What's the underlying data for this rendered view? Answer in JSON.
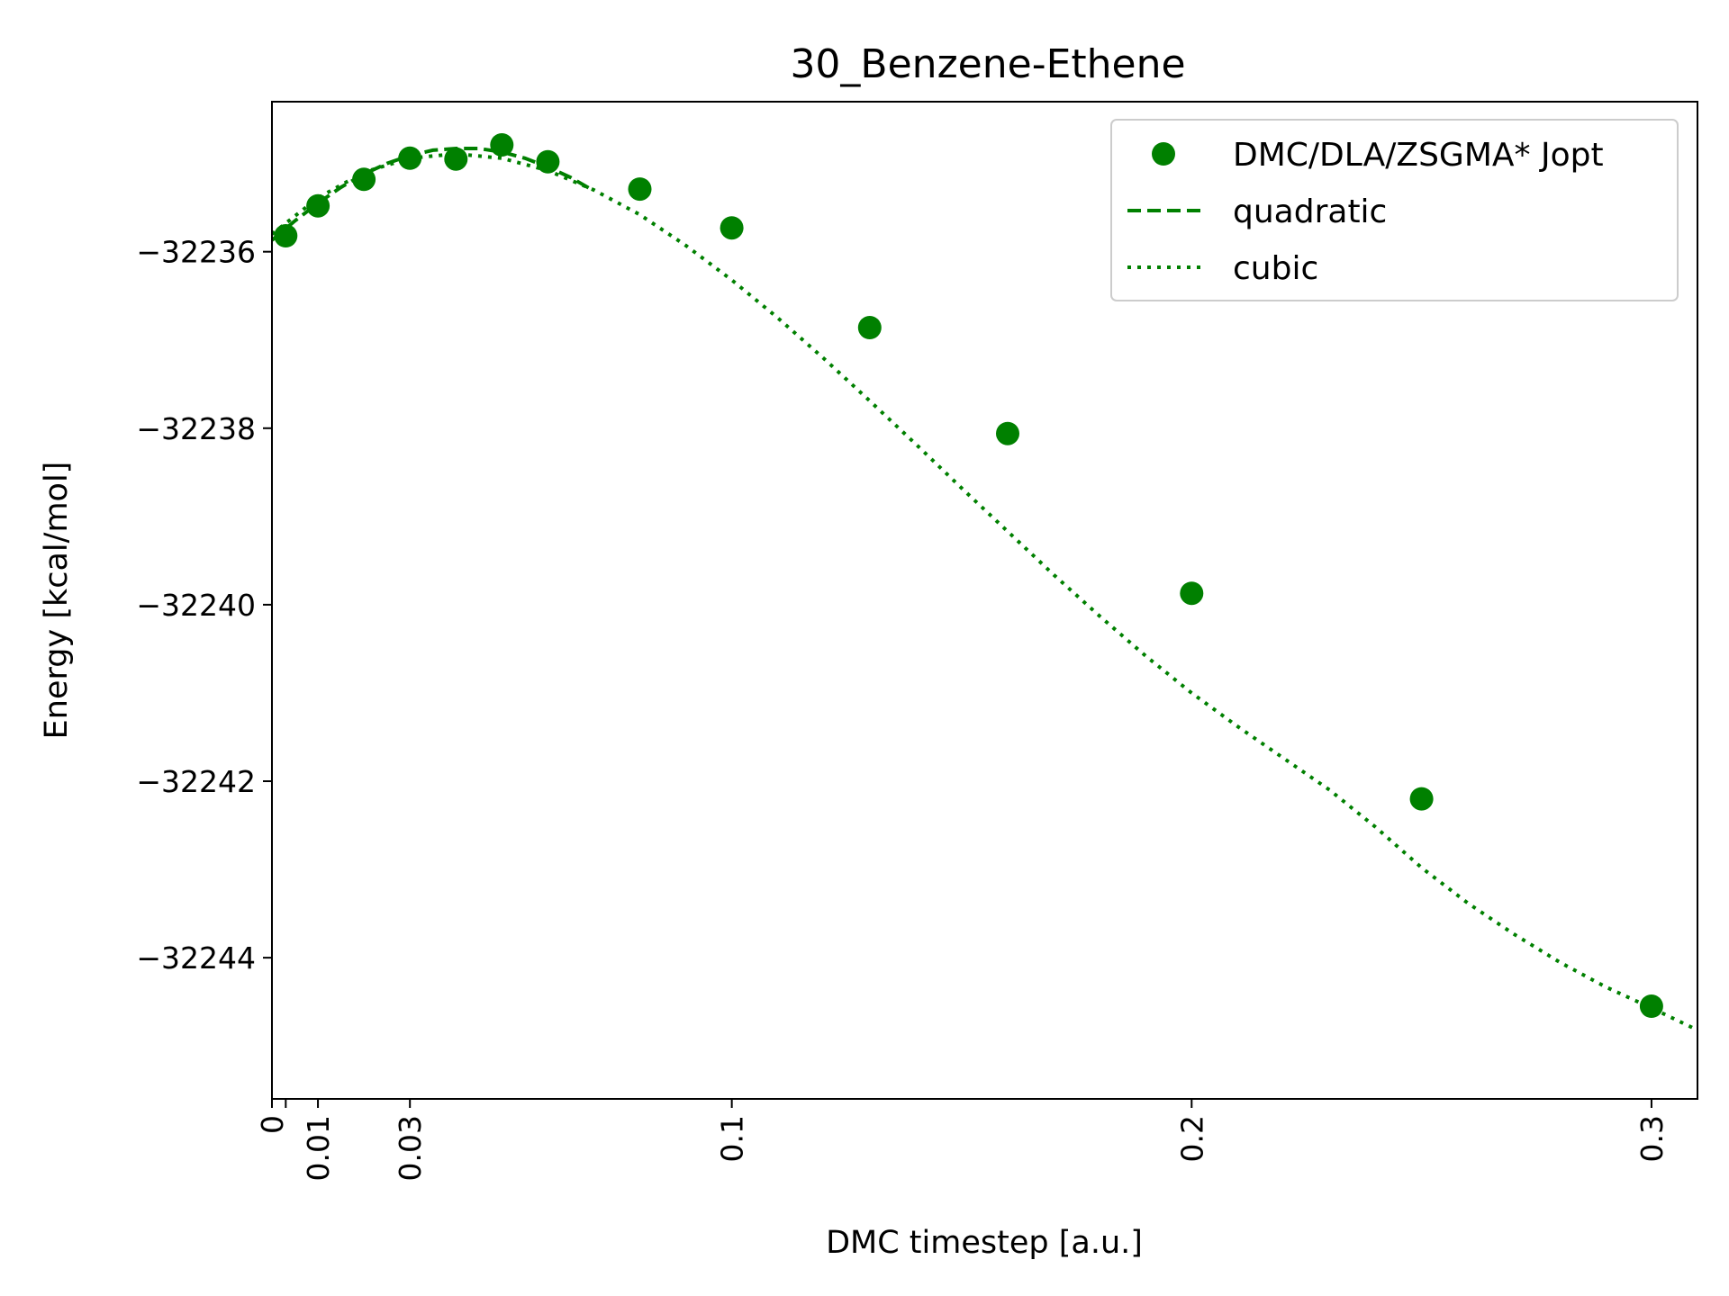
{
  "chart_data": {
    "type": "scatter",
    "title": "30_Benzene-Ethene",
    "xlabel": "DMC timestep [a.u.]",
    "ylabel": "Energy [kcal/mol]",
    "xlim": [
      0,
      0.31
    ],
    "ylim": [
      -32245.6,
      -32234.3
    ],
    "x_ticks": [
      0,
      0.003,
      0.01,
      0.03,
      0.1,
      0.2,
      0.3
    ],
    "x_tick_labels": [
      "0",
      "",
      "0.01",
      "0.03",
      "0.1",
      "0.2",
      "0.3"
    ],
    "y_ticks": [
      -32236,
      -32238,
      -32240,
      -32242,
      -32244
    ],
    "y_tick_labels": [
      "−32236",
      "−32238",
      "−32240",
      "−32242",
      "−32244"
    ],
    "grid": false,
    "legend_position": "top-right",
    "color": "#008000",
    "series": [
      {
        "name": "DMC/DLA/ZSGMA* Jopt",
        "type": "scatter",
        "x": [
          0.003,
          0.01,
          0.02,
          0.03,
          0.04,
          0.05,
          0.06,
          0.08,
          0.1,
          0.13,
          0.16,
          0.2,
          0.25,
          0.3
        ],
        "y": [
          -32235.82,
          -32235.48,
          -32235.18,
          -32234.94,
          -32234.95,
          -32234.79,
          -32234.98,
          -32235.29,
          -32235.73,
          -32236.86,
          -32238.06,
          -32239.87,
          -32242.2,
          -32244.55
        ]
      },
      {
        "name": "quadratic",
        "type": "line",
        "style": "dashed",
        "x": [
          0,
          0.005,
          0.01,
          0.015,
          0.02,
          0.025,
          0.03,
          0.035,
          0.04,
          0.045,
          0.05,
          0.055,
          0.06,
          0.065,
          0.069
        ],
        "y": [
          -32235.87,
          -32235.65,
          -32235.45,
          -32235.27,
          -32235.12,
          -32235.0,
          -32234.91,
          -32234.85,
          -32234.83,
          -32234.83,
          -32234.87,
          -32234.94,
          -32235.04,
          -32235.16,
          -32235.28
        ]
      },
      {
        "name": "cubic",
        "type": "line",
        "style": "dotted",
        "x": [
          0,
          0.01,
          0.02,
          0.03,
          0.04,
          0.05,
          0.06,
          0.07,
          0.08,
          0.09,
          0.1,
          0.11,
          0.12,
          0.13,
          0.14,
          0.15,
          0.16,
          0.17,
          0.18,
          0.19,
          0.2,
          0.21,
          0.22,
          0.23,
          0.24,
          0.25,
          0.26,
          0.27,
          0.28,
          0.29,
          0.3,
          0.31
        ],
        "y": [
          -32235.8,
          -32235.39,
          -32235.1,
          -32234.94,
          -32234.89,
          -32234.94,
          -32235.08,
          -32235.3,
          -32235.58,
          -32235.93,
          -32236.32,
          -32236.75,
          -32237.21,
          -32237.69,
          -32238.18,
          -32238.68,
          -32239.17,
          -32239.66,
          -32240.13,
          -32240.58,
          -32241.0,
          -32241.38,
          -32241.74,
          -32242.1,
          -32242.52,
          -32242.98,
          -32243.38,
          -32243.73,
          -32244.05,
          -32244.33,
          -32244.57,
          -32244.82
        ]
      }
    ]
  }
}
